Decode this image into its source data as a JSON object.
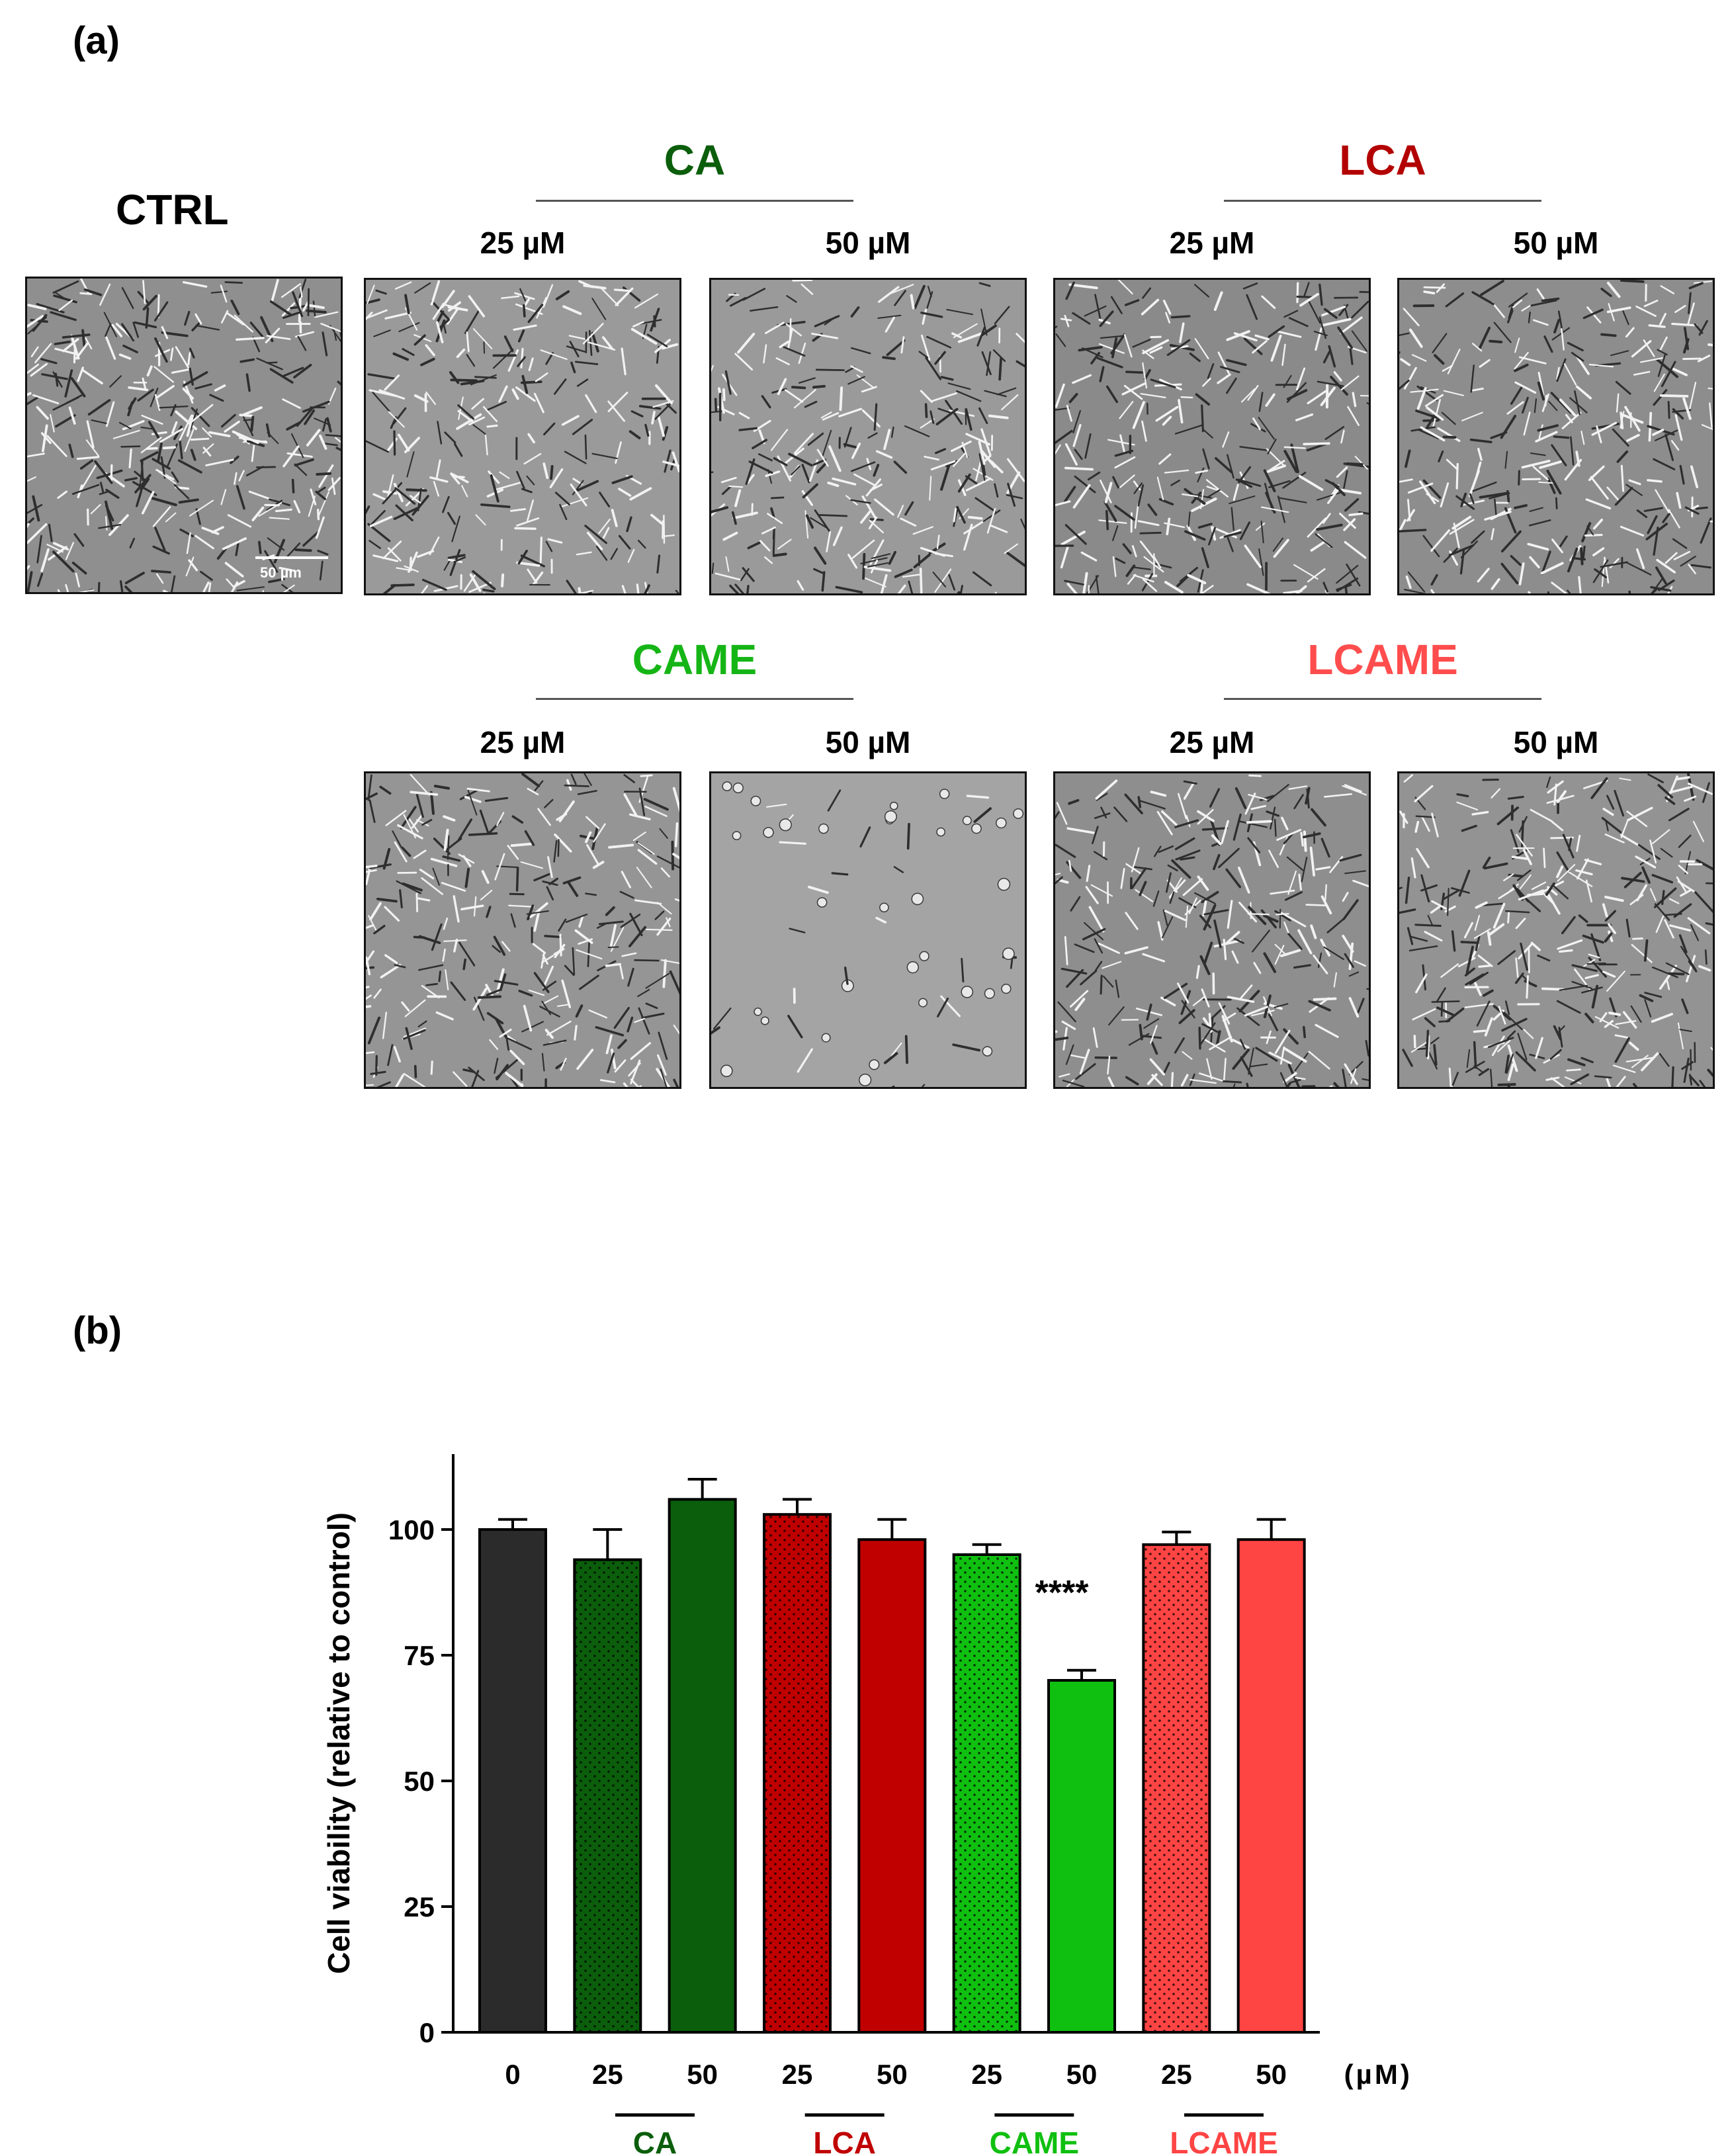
{
  "panel_a": {
    "label": "(a)",
    "ctrl_title": "CTRL",
    "scale_bar_text": "50 µm",
    "groups": [
      {
        "name": "CA",
        "color": "#0b5e0b"
      },
      {
        "name": "LCA",
        "color": "#b30000"
      },
      {
        "name": "CAME",
        "color": "#16b516"
      },
      {
        "name": "LCAME",
        "color": "#ff4d4d"
      }
    ],
    "dose_labels": [
      "25 µM",
      "50 µM"
    ]
  },
  "panel_b": {
    "label": "(b)"
  },
  "chart_data": {
    "type": "bar",
    "ylabel": "Cell viability (relative to control)",
    "xunit": "(µM)",
    "ylim": [
      0,
      115
    ],
    "yticks": [
      0,
      25,
      50,
      75,
      100
    ],
    "categories": [
      "0",
      "25",
      "50",
      "25",
      "50",
      "25",
      "50",
      "25",
      "50"
    ],
    "values": [
      100,
      94,
      106,
      103,
      98,
      95,
      70,
      97,
      98
    ],
    "errors": [
      2,
      6,
      4,
      3,
      4,
      2,
      2,
      2.5,
      4
    ],
    "colors": [
      "#2b2b2b",
      "#0b5e0b",
      "#0b5e0b",
      "#c00000",
      "#c00000",
      "#10c010",
      "#10c010",
      "#ff4444",
      "#ff4444"
    ],
    "patterned": [
      false,
      true,
      false,
      true,
      false,
      true,
      false,
      true,
      false
    ],
    "annotations": [
      {
        "bar_index": 6,
        "text": "****"
      }
    ],
    "groups": [
      {
        "name": "CA",
        "bars": [
          1,
          2
        ],
        "color": "#0b5e0b"
      },
      {
        "name": "LCA",
        "bars": [
          3,
          4
        ],
        "color": "#c00000"
      },
      {
        "name": "CAME",
        "bars": [
          5,
          6
        ],
        "color": "#10c010"
      },
      {
        "name": "LCAME",
        "bars": [
          7,
          8
        ],
        "color": "#ff4444"
      }
    ]
  }
}
